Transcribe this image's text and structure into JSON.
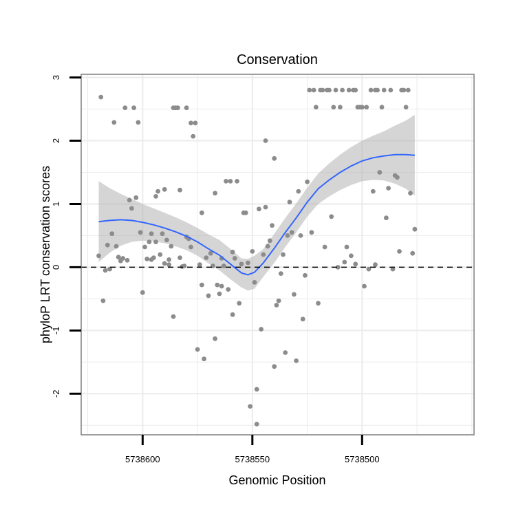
{
  "chart_data": {
    "type": "scatter",
    "title": "Conservation",
    "xlabel": "Genomic Position",
    "ylabel": "phyloP LRT conservation scores",
    "x_reversed": true,
    "xlim": [
      5738628,
      5738449
    ],
    "ylim": [
      -2.65,
      3.05
    ],
    "x_ticks": [
      5738600,
      5738550,
      5738500
    ],
    "x_tick_labels": [
      "5738600",
      "5738550",
      "5738500"
    ],
    "y_ticks": [
      3,
      2,
      1,
      0,
      -1,
      -2
    ],
    "y_tick_labels": [
      "3",
      "2",
      "1",
      "0",
      "-1",
      "-2"
    ],
    "grid": true,
    "reference_line": {
      "y": 0,
      "style": "dashed"
    },
    "colors": {
      "points": "#8c8c8c",
      "smooth": "#3366ff",
      "ribbon": "#b3b3b3",
      "grid": "#ebebeb",
      "panel_border": "#7f7f7f"
    },
    "series": [
      {
        "points": [
          [
            5738620,
            0.18
          ],
          [
            5738619,
            2.69
          ],
          [
            5738618,
            -0.53
          ],
          [
            5738617,
            -0.05
          ],
          [
            5738616,
            0.35
          ],
          [
            5738615,
            -0.03
          ],
          [
            5738614,
            0.53
          ],
          [
            5738613,
            2.29
          ],
          [
            5738612,
            0.33
          ],
          [
            5738611,
            0.16
          ],
          [
            5738610,
            0.1
          ],
          [
            5738609,
            0.14
          ],
          [
            5738608,
            2.52
          ],
          [
            5738607,
            0.11
          ],
          [
            5738606,
            1.06
          ],
          [
            5738605,
            0.93
          ],
          [
            5738604,
            2.52
          ],
          [
            5738603,
            1.1
          ],
          [
            5738602,
            2.29
          ],
          [
            5738601,
            0.55
          ],
          [
            5738600,
            -0.4
          ],
          [
            5738599,
            0.32
          ],
          [
            5738598,
            0.13
          ],
          [
            5738597,
            0.4
          ],
          [
            5738596,
            0.53
          ],
          [
            5738596,
            0.12
          ],
          [
            5738595,
            0.15
          ],
          [
            5738594,
            1.12
          ],
          [
            5738594,
            0.4
          ],
          [
            5738593,
            1.2
          ],
          [
            5738592,
            0.2
          ],
          [
            5738591,
            0.53
          ],
          [
            5738590,
            0.06
          ],
          [
            5738590,
            1.23
          ],
          [
            5738589,
            0.43
          ],
          [
            5738588,
            0.12
          ],
          [
            5738588,
            0.04
          ],
          [
            5738587,
            0.33
          ],
          [
            5738586,
            2.52
          ],
          [
            5738586,
            -0.78
          ],
          [
            5738585,
            2.52
          ],
          [
            5738584,
            2.52
          ],
          [
            5738583,
            0.15
          ],
          [
            5738583,
            1.22
          ],
          [
            5738582,
            0.01
          ],
          [
            5738581,
            0.02
          ],
          [
            5738580,
            2.52
          ],
          [
            5738580,
            0.48
          ],
          [
            5738579,
            0.45
          ],
          [
            5738578,
            2.28
          ],
          [
            5738578,
            0.32
          ],
          [
            5738577,
            2.07
          ],
          [
            5738576,
            2.28
          ],
          [
            5738575,
            -1.3
          ],
          [
            5738574,
            0.04
          ],
          [
            5738573,
            0.86
          ],
          [
            5738573,
            -0.28
          ],
          [
            5738572,
            -1.45
          ],
          [
            5738571,
            0.15
          ],
          [
            5738570,
            -0.45
          ],
          [
            5738569,
            0.22
          ],
          [
            5738568,
            0.02
          ],
          [
            5738567,
            1.17
          ],
          [
            5738567,
            -1.13
          ],
          [
            5738566,
            -0.28
          ],
          [
            5738565,
            -0.42
          ],
          [
            5738564,
            0.14
          ],
          [
            5738564,
            -0.3
          ],
          [
            5738563,
            0.02
          ],
          [
            5738562,
            1.36
          ],
          [
            5738561,
            -0.35
          ],
          [
            5738560,
            1.36
          ],
          [
            5738559,
            0.24
          ],
          [
            5738559,
            -0.75
          ],
          [
            5738558,
            0.14
          ],
          [
            5738557,
            1.36
          ],
          [
            5738556,
            -0.57
          ],
          [
            5738555,
            0.05
          ],
          [
            5738554,
            0.86
          ],
          [
            5738553,
            0.86
          ],
          [
            5738552,
            0.07
          ],
          [
            5738551,
            -2.2
          ],
          [
            5738550,
            0.25
          ],
          [
            5738549,
            -0.24
          ],
          [
            5738548,
            -1.93
          ],
          [
            5738548,
            -2.48
          ],
          [
            5738547,
            0.92
          ],
          [
            5738546,
            -0.98
          ],
          [
            5738545,
            0.2
          ],
          [
            5738544,
            2.0
          ],
          [
            5738544,
            0.95
          ],
          [
            5738543,
            0.33
          ],
          [
            5738542,
            0.42
          ],
          [
            5738541,
            0.66
          ],
          [
            5738540,
            1.72
          ],
          [
            5738540,
            -1.57
          ],
          [
            5738539,
            -0.6
          ],
          [
            5738538,
            -0.53
          ],
          [
            5738537,
            -0.1
          ],
          [
            5738536,
            0.2
          ],
          [
            5738535,
            -1.35
          ],
          [
            5738534,
            0.5
          ],
          [
            5738533,
            1.03
          ],
          [
            5738532,
            0.55
          ],
          [
            5738531,
            -0.43
          ],
          [
            5738530,
            -1.48
          ],
          [
            5738529,
            1.2
          ],
          [
            5738528,
            0.5
          ],
          [
            5738527,
            -0.82
          ],
          [
            5738526,
            -0.13
          ],
          [
            5738525,
            1.35
          ],
          [
            5738524,
            2.8
          ],
          [
            5738523,
            0.55
          ],
          [
            5738522,
            2.8
          ],
          [
            5738521,
            2.53
          ],
          [
            5738520,
            -0.57
          ],
          [
            5738519,
            2.8
          ],
          [
            5738518,
            2.8
          ],
          [
            5738517,
            0.32
          ],
          [
            5738516,
            2.8
          ],
          [
            5738515,
            2.8
          ],
          [
            5738514,
            0.8
          ],
          [
            5738513,
            2.53
          ],
          [
            5738512,
            2.8
          ],
          [
            5738511,
            0.0
          ],
          [
            5738510,
            2.53
          ],
          [
            5738509,
            2.8
          ],
          [
            5738508,
            0.08
          ],
          [
            5738507,
            0.32
          ],
          [
            5738506,
            2.8
          ],
          [
            5738505,
            0.18
          ],
          [
            5738504,
            2.8
          ],
          [
            5738503,
            2.8
          ],
          [
            5738503,
            0.05
          ],
          [
            5738502,
            2.53
          ],
          [
            5738501,
            2.53
          ],
          [
            5738500,
            2.53
          ],
          [
            5738499,
            -0.3
          ],
          [
            5738498,
            2.53
          ],
          [
            5738497,
            -0.03
          ],
          [
            5738496,
            2.8
          ],
          [
            5738495,
            1.2
          ],
          [
            5738494,
            2.8
          ],
          [
            5738494,
            0.04
          ],
          [
            5738493,
            2.8
          ],
          [
            5738492,
            1.5
          ],
          [
            5738491,
            2.53
          ],
          [
            5738490,
            2.8
          ],
          [
            5738489,
            0.78
          ],
          [
            5738488,
            1.25
          ],
          [
            5738487,
            2.8
          ],
          [
            5738486,
            -0.03
          ],
          [
            5738485,
            1.45
          ],
          [
            5738484,
            1.42
          ],
          [
            5738483,
            0.25
          ],
          [
            5738482,
            2.8
          ],
          [
            5738481,
            2.8
          ],
          [
            5738480,
            2.53
          ],
          [
            5738479,
            2.8
          ],
          [
            5738478,
            1.17
          ],
          [
            5738477,
            0.22
          ],
          [
            5738476,
            0.6
          ]
        ]
      }
    ],
    "smooth": {
      "x": [
        5738620,
        5738615,
        5738610,
        5738605,
        5738600,
        5738595,
        5738590,
        5738585,
        5738580,
        5738575,
        5738570,
        5738565,
        5738560,
        5738555,
        5738552,
        5738549,
        5738545,
        5738540,
        5738535,
        5738530,
        5738525,
        5738520,
        5738515,
        5738510,
        5738505,
        5738500,
        5738495,
        5738490,
        5738485,
        5738480,
        5738476
      ],
      "y": [
        0.72,
        0.74,
        0.75,
        0.74,
        0.71,
        0.67,
        0.62,
        0.56,
        0.49,
        0.4,
        0.29,
        0.19,
        0.05,
        -0.09,
        -0.12,
        -0.08,
        0.07,
        0.3,
        0.55,
        0.78,
        1.03,
        1.24,
        1.38,
        1.5,
        1.6,
        1.68,
        1.73,
        1.76,
        1.78,
        1.78,
        1.77
      ],
      "lower": [
        0.08,
        0.23,
        0.34,
        0.4,
        0.42,
        0.41,
        0.38,
        0.33,
        0.27,
        0.18,
        0.06,
        -0.05,
        -0.19,
        -0.32,
        -0.37,
        -0.34,
        -0.15,
        0.07,
        0.32,
        0.55,
        0.8,
        1.0,
        1.12,
        1.22,
        1.3,
        1.36,
        1.38,
        1.37,
        1.32,
        1.24,
        1.13
      ],
      "upper": [
        1.36,
        1.25,
        1.16,
        1.08,
        1.0,
        0.93,
        0.86,
        0.79,
        0.71,
        0.62,
        0.52,
        0.43,
        0.29,
        0.14,
        0.13,
        0.18,
        0.29,
        0.53,
        0.78,
        1.01,
        1.26,
        1.48,
        1.64,
        1.78,
        1.9,
        2.0,
        2.08,
        2.15,
        2.24,
        2.32,
        2.41
      ]
    }
  }
}
